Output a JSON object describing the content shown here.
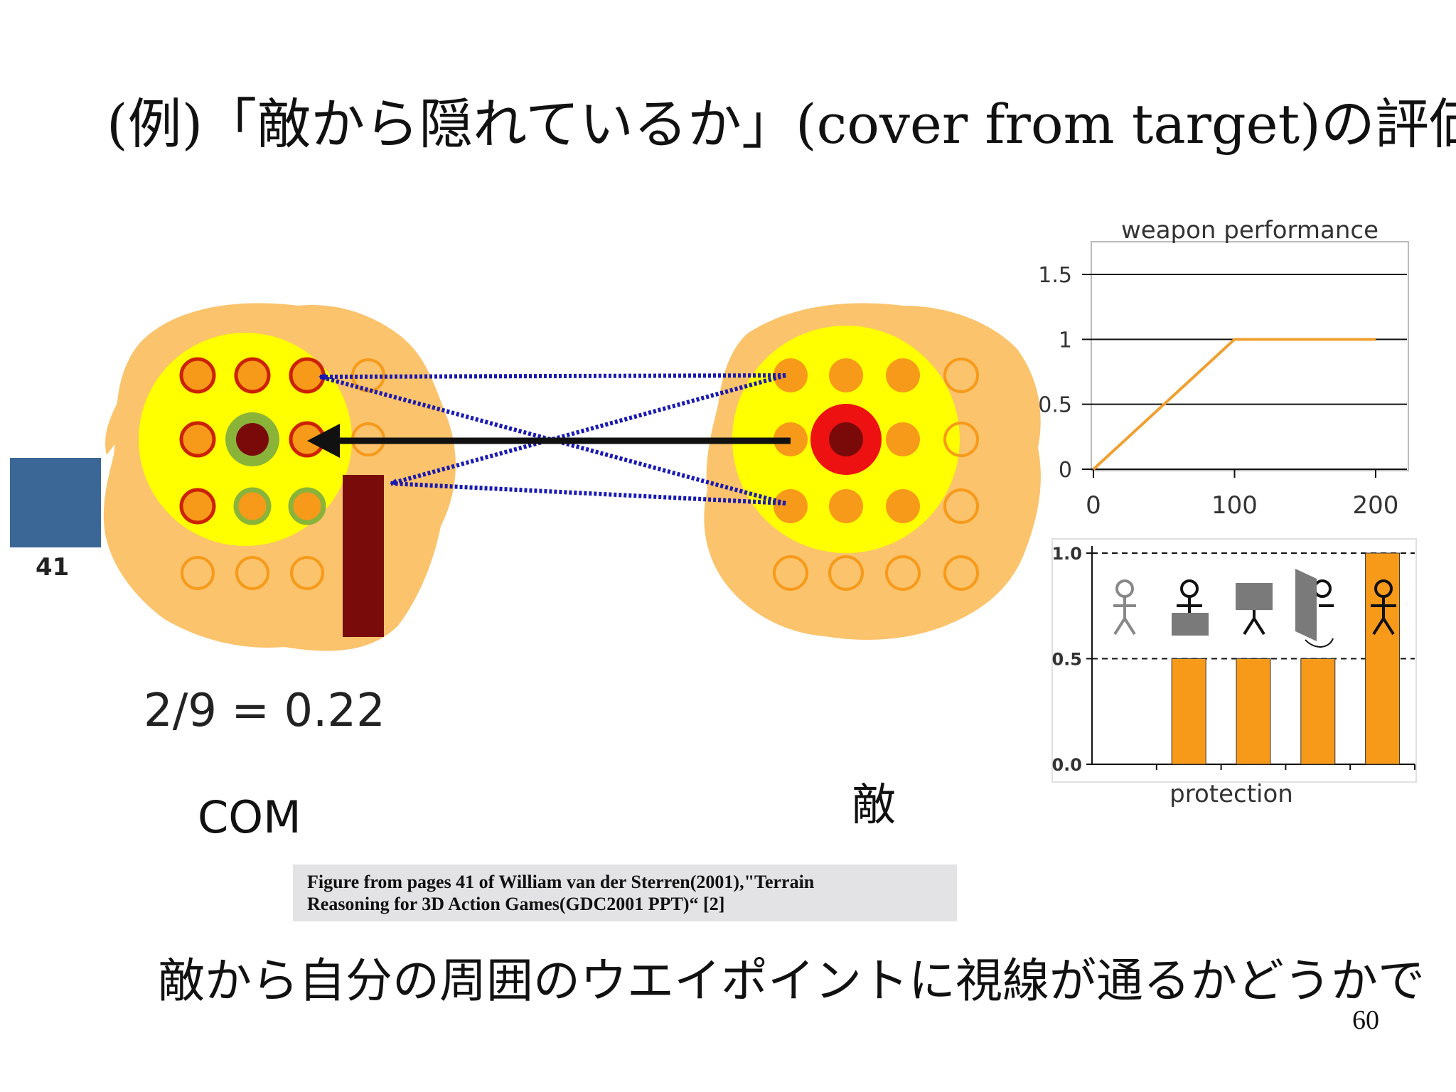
{
  "slide": {
    "title": "(例)「敵から隠れているか」(cover from target)の評価",
    "com_label": "COM",
    "enemy_label": "敵",
    "ratio_text": "2/9 = 0.22",
    "score_label": "41",
    "caption_line1": "Figure from pages 41 of William van der Sterren(2001),\"Terrain",
    "caption_line2": "Reasoning for 3D Action Games(GDC2001 PPT)“   [2]",
    "bottom_text": "敵から自分の周囲のウエイポイントに視線が通るかどうかで",
    "page_number": "60"
  },
  "colors": {
    "terrain": "#fbc36b",
    "zone": "#ffff00",
    "waypoint_fill": "#f79a1a",
    "waypoint_exposed_ring": "#cc2200",
    "waypoint_covered_ring": "#8ab33a",
    "com_center": "#7a0a0a",
    "enemy_ring": "#ee1111",
    "obstacle": "#7a0b0b",
    "score_box": "#3b6796",
    "sight_line": "#1a1ab0",
    "bar_fill": "#f79a1a"
  },
  "chart_data": [
    {
      "type": "line",
      "title": "weapon performance",
      "xticks": [
        "0",
        "100",
        "200"
      ],
      "yticks": [
        "0",
        "0.5",
        "1",
        "1.5"
      ],
      "ylim": [
        0,
        1.5
      ],
      "xlim": [
        0,
        200
      ],
      "grid": "horizontal",
      "series": [
        {
          "x": [
            0,
            100,
            200
          ],
          "y": [
            0,
            1,
            1
          ]
        }
      ]
    },
    {
      "type": "bar",
      "xlabel": "protection",
      "yticks": [
        "0.0",
        "0.5",
        "1.0"
      ],
      "ylim": [
        0,
        1.0
      ],
      "categories": [
        "no cover",
        "partial cover (lower body)",
        "partial cover (upper body)",
        "side cover",
        "full exposure"
      ],
      "category_icons": [
        "person-outline-icon",
        "person-behind-low-wall-icon",
        "person-behind-screen-icon",
        "person-behind-side-panel-icon",
        "person-highlighted-icon"
      ],
      "values": [
        0,
        0.5,
        0.5,
        0.5,
        1.0
      ]
    }
  ]
}
